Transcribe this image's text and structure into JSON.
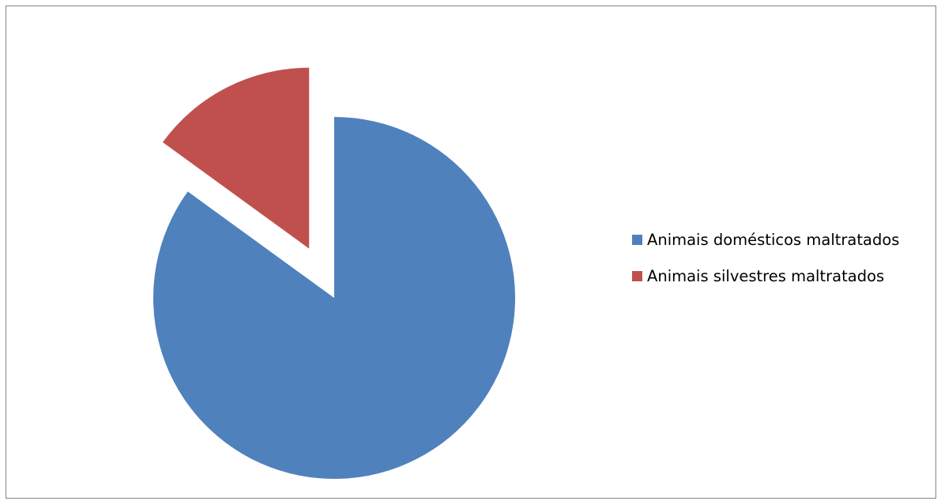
{
  "chart_data": {
    "type": "pie",
    "title": "",
    "categories": [
      "Animais domésticos maltratados",
      "Animais silvestres maltratados"
    ],
    "values": [
      85,
      15
    ],
    "colors": [
      "#4F81BD",
      "#C0504D"
    ],
    "exploded": [
      false,
      true
    ],
    "legend_position": "right"
  },
  "legend": {
    "items": [
      {
        "label": "Animais domésticos maltratados",
        "color": "#4F81BD"
      },
      {
        "label": "Animais silvestres maltratados",
        "color": "#C0504D"
      }
    ]
  }
}
